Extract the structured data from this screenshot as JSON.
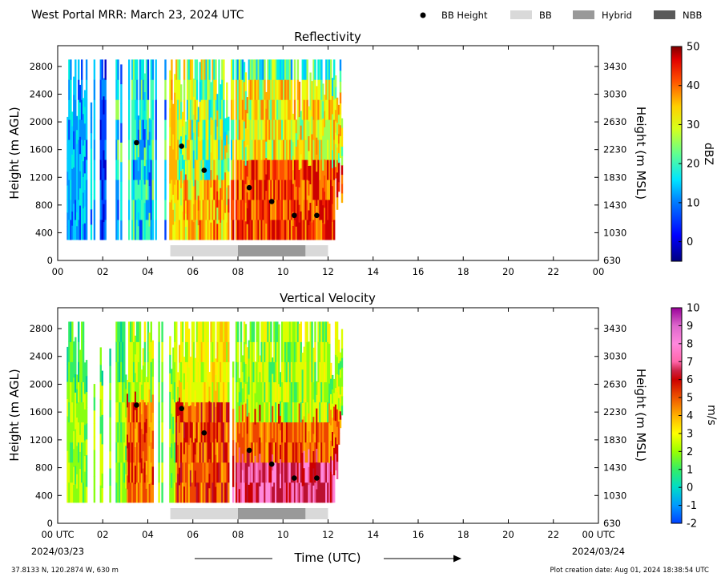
{
  "header": {
    "title": "West Portal MRR:  March 23, 2024 UTC",
    "legend": [
      {
        "label": "BB Height",
        "kind": "dot",
        "color": "#000000"
      },
      {
        "label": "BB",
        "kind": "rect",
        "color": "#d9d9d9"
      },
      {
        "label": "Hybrid",
        "kind": "rect",
        "color": "#999999"
      },
      {
        "label": "NBB",
        "kind": "rect",
        "color": "#595959"
      }
    ]
  },
  "footer": {
    "location": "37.8133 N, 120.2874 W, 630 m",
    "creation_date": "Plot creation date: Aug 01, 2024 18:38:54 UTC",
    "xlabel": "Time (UTC)",
    "start_date": "2024/03/23",
    "end_date": "2024/03/24"
  },
  "chart_data": [
    {
      "type": "heatmap",
      "title": "Reflectivity",
      "ylabel": "Height (m AGL)",
      "ylabel_right": "Height (m MSL)",
      "xticks": [
        "00",
        "02",
        "04",
        "06",
        "08",
        "10",
        "12",
        "14",
        "16",
        "18",
        "20",
        "22",
        "00"
      ],
      "yticks": [
        0,
        400,
        800,
        1200,
        1600,
        2000,
        2400,
        2800
      ],
      "yticks_right": [
        630,
        1030,
        1430,
        1830,
        2230,
        2630,
        3030,
        3430
      ],
      "xlim": [
        0,
        24
      ],
      "ylim": [
        0,
        3000
      ],
      "colorbar": {
        "label": "dBZ",
        "ticks": [
          0,
          10,
          20,
          30,
          40,
          50
        ],
        "range": [
          -5,
          50
        ]
      },
      "bb_height": {
        "x": [
          3.5,
          5.5,
          6.5,
          8.5,
          9.5,
          10.5,
          11.5
        ],
        "y": [
          1700,
          1650,
          1300,
          1050,
          850,
          650,
          650
        ]
      },
      "bb_type_periods": [
        {
          "start": 5.0,
          "end": 8.0,
          "type": "BB"
        },
        {
          "start": 8.0,
          "end": 11.0,
          "type": "Hybrid"
        },
        {
          "start": 11.0,
          "end": 12.0,
          "type": "BB"
        }
      ]
    },
    {
      "type": "heatmap",
      "title": "Vertical Velocity",
      "ylabel": "Height (m AGL)",
      "ylabel_right": "Height (m MSL)",
      "xticks": [
        "00 UTC",
        "02",
        "04",
        "06",
        "08",
        "10",
        "12",
        "14",
        "16",
        "18",
        "20",
        "22",
        "00 UTC"
      ],
      "yticks": [
        0,
        400,
        800,
        1200,
        1600,
        2000,
        2400,
        2800
      ],
      "yticks_right": [
        630,
        1030,
        1430,
        1830,
        2230,
        2630,
        3030,
        3430
      ],
      "xlim": [
        0,
        24
      ],
      "ylim": [
        0,
        3000
      ],
      "colorbar": {
        "label": "m/s",
        "ticks": [
          -2,
          -1,
          0,
          1,
          2,
          3,
          4,
          5,
          6,
          7,
          8,
          9,
          10
        ],
        "range": [
          -2,
          10
        ]
      },
      "bb_height": {
        "x": [
          3.5,
          5.5,
          6.5,
          8.5,
          9.5,
          10.5,
          11.5
        ],
        "y": [
          1700,
          1650,
          1300,
          1050,
          850,
          650,
          650
        ]
      },
      "bb_type_periods": [
        {
          "start": 5.0,
          "end": 8.0,
          "type": "BB"
        },
        {
          "start": 8.0,
          "end": 11.0,
          "type": "Hybrid"
        },
        {
          "start": 11.0,
          "end": 12.0,
          "type": "BB"
        }
      ]
    }
  ]
}
